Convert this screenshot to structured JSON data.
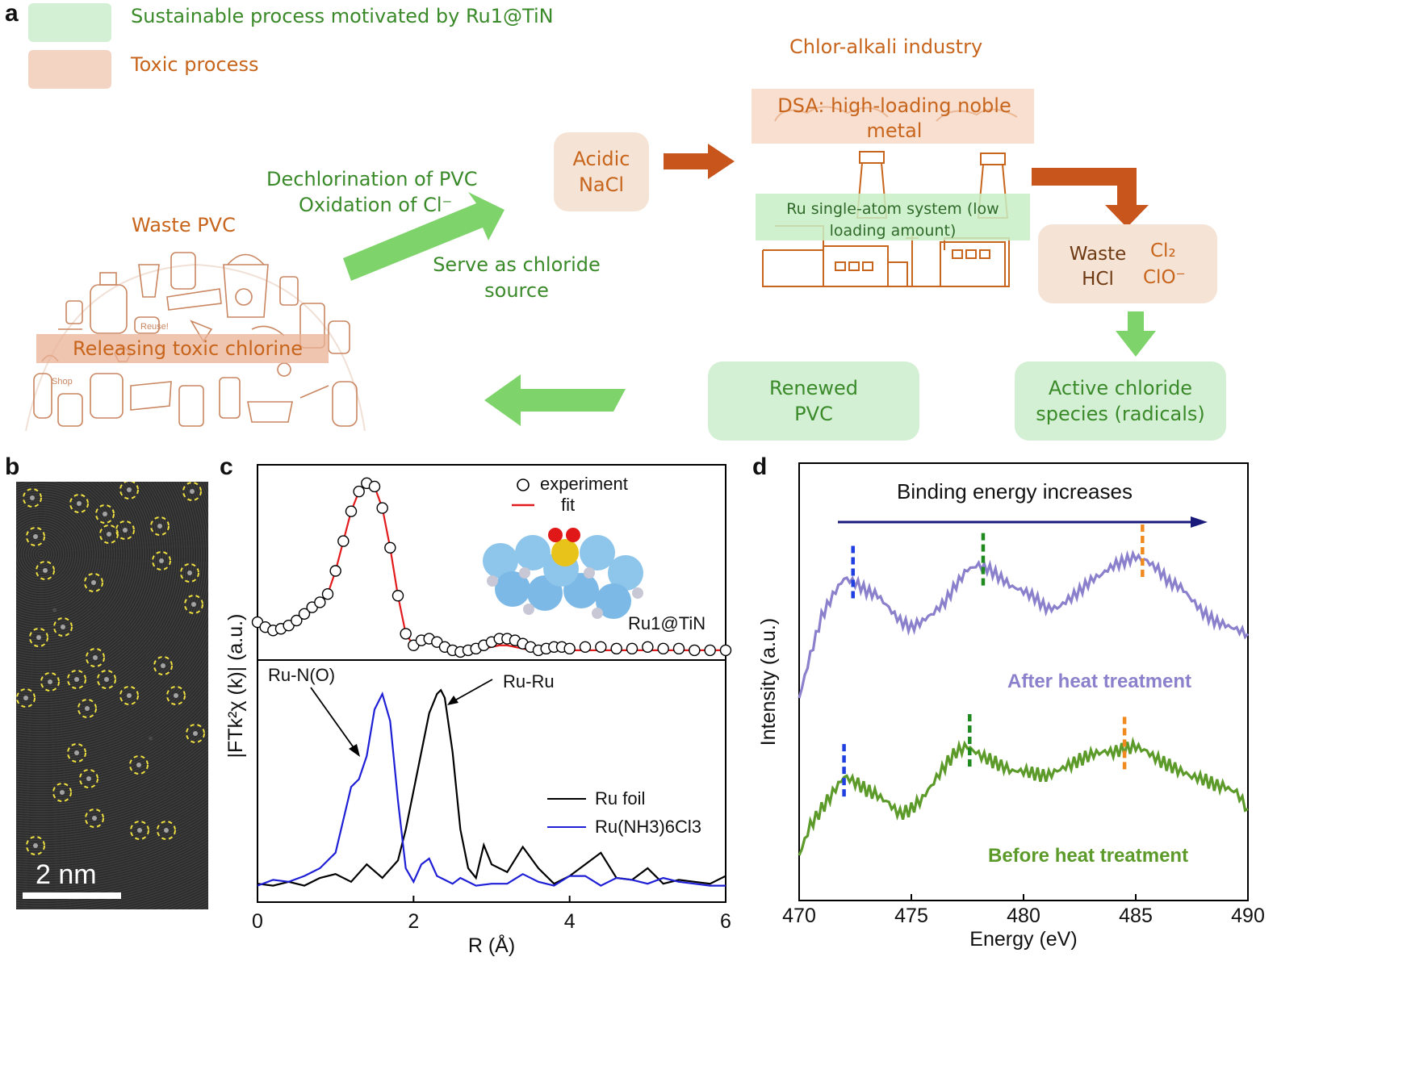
{
  "panel_labels": {
    "a": "a",
    "b": "b",
    "c": "c",
    "d": "d"
  },
  "panel_a": {
    "legend": [
      {
        "label": "Sustainable process motivated by Ru1@TiN",
        "color": "#d4f0d4"
      },
      {
        "label": "Toxic process",
        "color": "#f3d3c2"
      }
    ],
    "industry_title": "Chlor-alkali industry",
    "dsa_label": "DSA: high-loading noble metal",
    "ru_system_label": "Ru single-atom system (low loading amount)",
    "acidic_nacl": "Acidic\nNaCl",
    "dechlorination_line1": "Dechlorination of PVC",
    "oxidation_line2": "Oxidation of Cl⁻",
    "serve_chloride": "Serve as chloride\nsource",
    "waste_pvc_title": "Waste PVC",
    "releasing_label": "Releasing toxic chlorine",
    "waste_hcl": "Waste\nHCl",
    "cl2": "Cl₂",
    "clo": "ClO⁻",
    "active_chloride": "Active chloride\nspecies (radicals)",
    "renewed_pvc": "Renewed\nPVC",
    "doodle_words": [
      "Reuse!",
      "Shop"
    ],
    "colors": {
      "green": "#3a8a2a",
      "orange": "#c8651c",
      "green_arrow": "#7ed36b",
      "orange_arrow": "#c8561c",
      "green_box": "#d4f0d4",
      "orange_box": "#f5e3d5"
    }
  },
  "panel_b": {
    "scale_bar_label": "2 nm"
  },
  "chart_data": [
    {
      "id": "c-top",
      "type": "line",
      "title": "",
      "xlabel": "R (Å)",
      "ylabel": "|FTk²χ (k)| (a.u.)",
      "xlim": [
        0,
        6
      ],
      "xticks": [
        0,
        2,
        4,
        6
      ],
      "sample_label": "Ru1@TiN",
      "legend": [
        {
          "name": "experiment",
          "style": "open-circles",
          "color": "#000000"
        },
        {
          "name": "fit",
          "style": "line",
          "color": "#e31a1c"
        }
      ],
      "series": [
        {
          "name": "experiment",
          "x": [
            0.0,
            0.1,
            0.2,
            0.3,
            0.4,
            0.5,
            0.6,
            0.7,
            0.8,
            0.9,
            1.0,
            1.1,
            1.2,
            1.3,
            1.4,
            1.5,
            1.6,
            1.7,
            1.8,
            1.9,
            2.0,
            2.1,
            2.2,
            2.3,
            2.4,
            2.5,
            2.6,
            2.7,
            2.8,
            2.9,
            3.0,
            3.1,
            3.2,
            3.3,
            3.4,
            3.5,
            3.6,
            3.7,
            3.8,
            3.9,
            4.0,
            4.2,
            4.4,
            4.6,
            4.8,
            5.0,
            5.2,
            5.4,
            5.6,
            5.8,
            6.0
          ],
          "y": [
            0.19,
            0.16,
            0.14,
            0.15,
            0.17,
            0.2,
            0.24,
            0.28,
            0.31,
            0.36,
            0.5,
            0.68,
            0.86,
            0.98,
            1.03,
            1.01,
            0.88,
            0.64,
            0.35,
            0.12,
            0.05,
            0.08,
            0.09,
            0.07,
            0.04,
            0.02,
            0.01,
            0.02,
            0.03,
            0.05,
            0.07,
            0.09,
            0.09,
            0.08,
            0.06,
            0.04,
            0.02,
            0.03,
            0.04,
            0.04,
            0.03,
            0.04,
            0.04,
            0.03,
            0.03,
            0.04,
            0.03,
            0.03,
            0.02,
            0.02,
            0.02
          ]
        },
        {
          "name": "fit",
          "x": [
            0.0,
            0.1,
            0.2,
            0.3,
            0.4,
            0.5,
            0.6,
            0.7,
            0.8,
            0.9,
            1.0,
            1.1,
            1.2,
            1.3,
            1.4,
            1.5,
            1.6,
            1.7,
            1.8,
            1.9,
            2.0,
            2.1,
            2.2,
            2.3,
            2.4,
            2.5,
            2.6,
            2.7,
            2.8,
            2.9,
            3.0,
            3.1,
            3.2,
            3.3,
            3.4,
            3.5,
            3.6,
            3.7,
            3.8,
            3.9,
            4.0,
            4.2,
            4.4,
            4.6,
            4.8,
            5.0,
            5.2,
            5.4,
            5.6,
            5.8,
            6.0
          ],
          "y": [
            0.19,
            0.16,
            0.14,
            0.15,
            0.17,
            0.2,
            0.24,
            0.28,
            0.31,
            0.36,
            0.5,
            0.68,
            0.86,
            0.98,
            1.03,
            1.01,
            0.88,
            0.64,
            0.35,
            0.12,
            0.05,
            0.08,
            0.08,
            0.06,
            0.04,
            0.02,
            0.01,
            0.01,
            0.02,
            0.03,
            0.04,
            0.05,
            0.05,
            0.04,
            0.03,
            0.02,
            0.01,
            0.02,
            0.02,
            0.02,
            0.02,
            0.02,
            0.02,
            0.02,
            0.02,
            0.02,
            0.02,
            0.02,
            0.02,
            0.02,
            0.02
          ]
        }
      ]
    },
    {
      "id": "c-bottom",
      "type": "line",
      "xlabel": "R (Å)",
      "xlim": [
        0,
        6
      ],
      "xticks": [
        0,
        2,
        4,
        6
      ],
      "annotations": [
        "Ru-N(O)",
        "Ru-Ru"
      ],
      "legend": [
        {
          "name": "Ru foil",
          "color": "#000000"
        },
        {
          "name": "Ru(NH3)6Cl3",
          "color": "#1f1fd6"
        }
      ],
      "series": [
        {
          "name": "Ru foil",
          "x": [
            0.0,
            0.2,
            0.4,
            0.6,
            0.8,
            1.0,
            1.2,
            1.4,
            1.6,
            1.8,
            1.9,
            2.0,
            2.1,
            2.2,
            2.3,
            2.35,
            2.4,
            2.5,
            2.6,
            2.7,
            2.8,
            2.9,
            3.0,
            3.2,
            3.4,
            3.6,
            3.8,
            4.0,
            4.2,
            4.4,
            4.6,
            4.8,
            5.0,
            5.2,
            5.4,
            5.6,
            5.8,
            6.0
          ],
          "y": [
            0.02,
            0.01,
            0.03,
            0.01,
            0.05,
            0.07,
            0.03,
            0.12,
            0.05,
            0.14,
            0.3,
            0.5,
            0.7,
            0.9,
            1.0,
            1.02,
            0.98,
            0.7,
            0.3,
            0.1,
            0.05,
            0.22,
            0.12,
            0.08,
            0.21,
            0.1,
            0.02,
            0.06,
            0.12,
            0.18,
            0.05,
            0.04,
            0.1,
            0.02,
            0.04,
            0.03,
            0.02,
            0.06
          ]
        },
        {
          "name": "Ru(NH3)6Cl3",
          "x": [
            0.0,
            0.2,
            0.4,
            0.6,
            0.8,
            1.0,
            1.1,
            1.2,
            1.3,
            1.4,
            1.5,
            1.6,
            1.7,
            1.8,
            1.9,
            2.0,
            2.1,
            2.2,
            2.3,
            2.4,
            2.5,
            2.6,
            2.8,
            3.0,
            3.2,
            3.4,
            3.6,
            3.8,
            4.0,
            4.2,
            4.4,
            4.6,
            4.8,
            5.0,
            5.2,
            5.4,
            5.6,
            5.8,
            6.0
          ],
          "y": [
            0.01,
            0.04,
            0.03,
            0.06,
            0.1,
            0.18,
            0.35,
            0.52,
            0.56,
            0.68,
            0.92,
            1.0,
            0.86,
            0.45,
            0.1,
            0.03,
            0.12,
            0.15,
            0.06,
            0.04,
            0.02,
            0.05,
            0.01,
            0.02,
            0.02,
            0.07,
            0.03,
            0.01,
            0.06,
            0.06,
            0.01,
            0.05,
            0.04,
            0.02,
            0.05,
            0.03,
            0.02,
            0.01,
            0.01
          ]
        }
      ]
    },
    {
      "id": "d",
      "type": "line",
      "xlabel": "Energy (eV)",
      "ylabel": "Intensity (a.u.)",
      "xlim": [
        470,
        490
      ],
      "xticks": [
        470,
        475,
        480,
        485,
        490
      ],
      "arrow_label": "Binding energy increases",
      "series": [
        {
          "name": "After heat treatment",
          "color": "#8b80cc",
          "x": [
            470,
            470.5,
            471,
            471.5,
            472,
            472.5,
            473,
            473.5,
            474,
            474.5,
            475,
            475.5,
            476,
            476.5,
            477,
            477.5,
            478,
            478.5,
            479,
            479.5,
            480,
            480.5,
            481,
            481.5,
            482,
            482.5,
            483,
            483.5,
            484,
            484.5,
            485,
            485.5,
            486,
            486.5,
            487,
            487.5,
            488,
            488.5,
            489,
            489.5,
            490
          ],
          "y": [
            0.3,
            0.5,
            0.68,
            0.78,
            0.86,
            0.84,
            0.8,
            0.78,
            0.72,
            0.66,
            0.63,
            0.66,
            0.7,
            0.75,
            0.83,
            0.9,
            0.92,
            0.9,
            0.86,
            0.82,
            0.8,
            0.77,
            0.72,
            0.72,
            0.76,
            0.8,
            0.85,
            0.88,
            0.92,
            0.94,
            0.96,
            0.94,
            0.9,
            0.84,
            0.82,
            0.76,
            0.7,
            0.66,
            0.64,
            0.62,
            0.6
          ]
        },
        {
          "name": "Before heat treatment",
          "color": "#5c9a2a",
          "x": [
            470,
            470.5,
            471,
            471.5,
            472,
            472.5,
            473,
            473.5,
            474,
            474.5,
            475,
            475.5,
            476,
            476.5,
            477,
            477.5,
            478,
            478.5,
            479,
            479.5,
            480,
            480.5,
            481,
            481.5,
            482,
            482.5,
            483,
            483.5,
            484,
            484.5,
            485,
            485.5,
            486,
            486.5,
            487,
            487.5,
            488,
            488.5,
            489,
            489.5,
            490
          ],
          "y": [
            0.05,
            0.16,
            0.22,
            0.28,
            0.34,
            0.32,
            0.29,
            0.27,
            0.24,
            0.2,
            0.22,
            0.26,
            0.32,
            0.38,
            0.43,
            0.45,
            0.42,
            0.4,
            0.38,
            0.36,
            0.36,
            0.35,
            0.34,
            0.36,
            0.38,
            0.4,
            0.42,
            0.43,
            0.43,
            0.44,
            0.45,
            0.43,
            0.4,
            0.38,
            0.36,
            0.34,
            0.33,
            0.31,
            0.3,
            0.28,
            0.22
          ]
        }
      ],
      "markers": [
        {
          "series": "After heat treatment",
          "x": 472.4,
          "color": "#1f3fe0"
        },
        {
          "series": "After heat treatment",
          "x": 478.2,
          "color": "#1f8a1f"
        },
        {
          "series": "After heat treatment",
          "x": 485.3,
          "color": "#f08a1f"
        },
        {
          "series": "Before heat treatment",
          "x": 472.0,
          "color": "#1f3fe0"
        },
        {
          "series": "Before heat treatment",
          "x": 477.6,
          "color": "#1f8a1f"
        },
        {
          "series": "Before heat treatment",
          "x": 484.5,
          "color": "#f08a1f"
        }
      ]
    }
  ]
}
